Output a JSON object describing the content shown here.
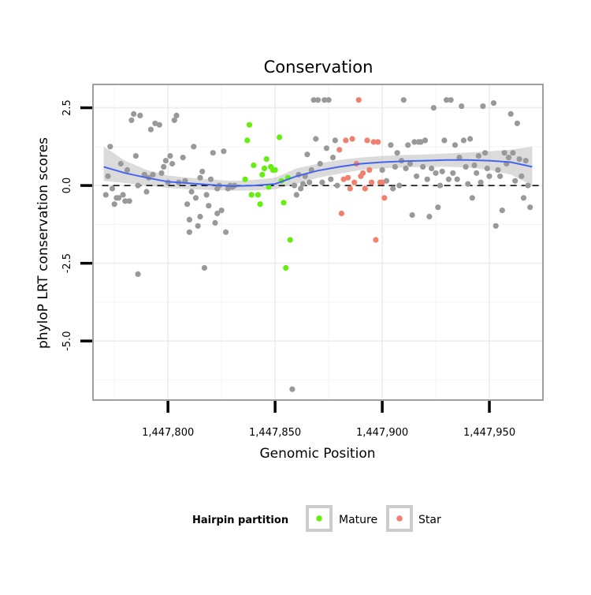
{
  "chart_data": {
    "type": "scatter",
    "title": "Conservation",
    "xlabel": "Genomic Position",
    "ylabel": "phyloP LRT conservation scores",
    "xlim": [
      1447765,
      1447975
    ],
    "ylim": [
      -6.9,
      3.25
    ],
    "x_ticks": [
      1447800,
      1447850,
      1447900,
      1447950
    ],
    "x_tick_labels": [
      "1,447,800",
      "1,447,850",
      "1,447,900",
      "1,447,950"
    ],
    "y_ticks": [
      2.5,
      0.0,
      -2.5,
      -5.0
    ],
    "y_tick_labels": [
      "2.5",
      "0.0",
      "-2.5",
      "-5.0"
    ],
    "reference_line": {
      "y": 0,
      "style": "dashed",
      "color": "#000000"
    },
    "grid": true,
    "colors": {
      "other": "#999999",
      "mature": "#66ee11",
      "star": "#f08070",
      "smooth": "#4466ee",
      "band": "#cccccc"
    },
    "legend": {
      "title": "Hairpin partition",
      "position": "bottom",
      "entries": [
        {
          "name": "Mature",
          "color": "#66ee11"
        },
        {
          "name": "Star",
          "color": "#f08070"
        }
      ]
    },
    "smooth": {
      "x": [
        1447770,
        1447780,
        1447790,
        1447800,
        1447810,
        1447820,
        1447830,
        1447840,
        1447850,
        1447860,
        1447870,
        1447880,
        1447890,
        1447900,
        1447910,
        1447920,
        1447930,
        1447940,
        1447950,
        1447960,
        1447970
      ],
      "y": [
        0.6,
        0.4,
        0.25,
        0.12,
        0.07,
        0.02,
        -0.02,
        0.0,
        0.05,
        0.3,
        0.48,
        0.6,
        0.7,
        0.75,
        0.78,
        0.8,
        0.82,
        0.82,
        0.8,
        0.75,
        0.6
      ],
      "lower": [
        0.15,
        0.08,
        0.0,
        -0.08,
        -0.12,
        -0.14,
        -0.17,
        -0.16,
        -0.12,
        0.05,
        0.25,
        0.38,
        0.5,
        0.55,
        0.58,
        0.6,
        0.6,
        0.58,
        0.5,
        0.35,
        0.0
      ],
      "upper": [
        1.25,
        0.8,
        0.5,
        0.32,
        0.25,
        0.2,
        0.15,
        0.18,
        0.25,
        0.55,
        0.7,
        0.82,
        0.9,
        0.95,
        0.98,
        1.0,
        1.03,
        1.06,
        1.1,
        1.15,
        1.25
      ]
    },
    "series": [
      {
        "name": "Other",
        "color": "#999999",
        "points": [
          [
            1447771,
            -0.3
          ],
          [
            1447772,
            0.3
          ],
          [
            1447773,
            1.25
          ],
          [
            1447774,
            -0.1
          ],
          [
            1447775,
            -0.6
          ],
          [
            1447776,
            -0.4
          ],
          [
            1447777,
            -0.4
          ],
          [
            1447778,
            0.7
          ],
          [
            1447779,
            -0.3
          ],
          [
            1447780,
            -0.5
          ],
          [
            1447781,
            0.5
          ],
          [
            1447782,
            -0.5
          ],
          [
            1447783,
            2.1
          ],
          [
            1447784,
            2.3
          ],
          [
            1447785,
            0.95
          ],
          [
            1447786,
            0.0
          ],
          [
            1447786,
            -2.85
          ],
          [
            1447787,
            2.25
          ],
          [
            1447789,
            0.35
          ],
          [
            1447790,
            -0.2
          ],
          [
            1447791,
            0.25
          ],
          [
            1447792,
            1.8
          ],
          [
            1447793,
            0.35
          ],
          [
            1447794,
            2.0
          ],
          [
            1447796,
            1.95
          ],
          [
            1447797,
            0.4
          ],
          [
            1447798,
            0.6
          ],
          [
            1447799,
            0.8
          ],
          [
            1447800,
            0.1
          ],
          [
            1447801,
            0.95
          ],
          [
            1447802,
            0.7
          ],
          [
            1447803,
            2.1
          ],
          [
            1447804,
            2.25
          ],
          [
            1447805,
            0.1
          ],
          [
            1447807,
            0.9
          ],
          [
            1447808,
            0.15
          ],
          [
            1447809,
            -0.6
          ],
          [
            1447810,
            -1.1
          ],
          [
            1447810,
            -1.5
          ],
          [
            1447811,
            -0.2
          ],
          [
            1447812,
            1.25
          ],
          [
            1447813,
            -0.4
          ],
          [
            1447814,
            -1.3
          ],
          [
            1447815,
            0.25
          ],
          [
            1447815,
            -1.0
          ],
          [
            1447816,
            0.45
          ],
          [
            1447817,
            -2.65
          ],
          [
            1447818,
            -0.3
          ],
          [
            1447819,
            -0.65
          ],
          [
            1447820,
            0.2
          ],
          [
            1447821,
            1.05
          ],
          [
            1447822,
            -1.2
          ],
          [
            1447823,
            -0.1
          ],
          [
            1447823,
            -0.9
          ],
          [
            1447824,
            0.0
          ],
          [
            1447825,
            -0.8
          ],
          [
            1447826,
            1.1
          ],
          [
            1447827,
            -1.5
          ],
          [
            1447828,
            -0.1
          ],
          [
            1447829,
            0.0
          ],
          [
            1447830,
            -0.05
          ],
          [
            1447831,
            0.0
          ],
          [
            1447858,
            -6.55
          ],
          [
            1447859,
            0.0
          ],
          [
            1447860,
            -0.3
          ],
          [
            1447861,
            0.35
          ],
          [
            1447862,
            -0.1
          ],
          [
            1447863,
            0.05
          ],
          [
            1447864,
            0.3
          ],
          [
            1447865,
            1.0
          ],
          [
            1447866,
            0.1
          ],
          [
            1447867,
            0.5
          ],
          [
            1447868,
            2.75
          ],
          [
            1447869,
            1.5
          ],
          [
            1447870,
            2.75
          ],
          [
            1447871,
            0.7
          ],
          [
            1447872,
            0.1
          ],
          [
            1447873,
            2.75
          ],
          [
            1447874,
            1.2
          ],
          [
            1447875,
            2.75
          ],
          [
            1447876,
            0.2
          ],
          [
            1447877,
            0.9
          ],
          [
            1447878,
            1.45
          ],
          [
            1447879,
            0.0
          ],
          [
            1447900,
            0.5
          ],
          [
            1447902,
            0.15
          ],
          [
            1447904,
            1.3
          ],
          [
            1447905,
            -0.1
          ],
          [
            1447906,
            0.6
          ],
          [
            1447907,
            1.05
          ],
          [
            1447908,
            0.0
          ],
          [
            1447909,
            0.8
          ],
          [
            1447910,
            2.75
          ],
          [
            1447911,
            0.55
          ],
          [
            1447912,
            1.3
          ],
          [
            1447913,
            0.7
          ],
          [
            1447914,
            -0.95
          ],
          [
            1447915,
            1.4
          ],
          [
            1447916,
            0.3
          ],
          [
            1447917,
            1.4
          ],
          [
            1447918,
            1.4
          ],
          [
            1447919,
            0.6
          ],
          [
            1447920,
            1.45
          ],
          [
            1447921,
            0.2
          ],
          [
            1447922,
            -1.0
          ],
          [
            1447923,
            0.55
          ],
          [
            1447924,
            2.5
          ],
          [
            1447925,
            0.4
          ],
          [
            1447926,
            -0.7
          ],
          [
            1447927,
            0.0
          ],
          [
            1447928,
            0.45
          ],
          [
            1447929,
            1.45
          ],
          [
            1447930,
            2.75
          ],
          [
            1447931,
            0.2
          ],
          [
            1447932,
            2.75
          ],
          [
            1447933,
            0.4
          ],
          [
            1447934,
            1.3
          ],
          [
            1447935,
            0.2
          ],
          [
            1447936,
            0.9
          ],
          [
            1447937,
            2.55
          ],
          [
            1447938,
            1.45
          ],
          [
            1447939,
            0.6
          ],
          [
            1447940,
            0.05
          ],
          [
            1447941,
            1.5
          ],
          [
            1447942,
            -0.4
          ],
          [
            1447943,
            0.65
          ],
          [
            1447944,
            0.4
          ],
          [
            1447945,
            0.95
          ],
          [
            1447946,
            0.1
          ],
          [
            1447947,
            2.55
          ],
          [
            1447948,
            1.05
          ],
          [
            1447949,
            0.55
          ],
          [
            1447950,
            0.3
          ],
          [
            1447952,
            2.65
          ],
          [
            1447953,
            -1.3
          ],
          [
            1447954,
            0.5
          ],
          [
            1447955,
            0.3
          ],
          [
            1447956,
            -0.8
          ],
          [
            1447957,
            1.05
          ],
          [
            1447958,
            0.7
          ],
          [
            1447959,
            0.9
          ],
          [
            1447960,
            2.3
          ],
          [
            1447961,
            1.05
          ],
          [
            1447962,
            0.15
          ],
          [
            1447963,
            2.0
          ],
          [
            1447964,
            0.85
          ],
          [
            1447965,
            0.3
          ],
          [
            1447966,
            -0.4
          ],
          [
            1447967,
            0.8
          ],
          [
            1447968,
            0.0
          ],
          [
            1447969,
            -0.7
          ]
        ]
      },
      {
        "name": "Mature",
        "color": "#66ee11",
        "points": [
          [
            1447836,
            0.2
          ],
          [
            1447837,
            1.45
          ],
          [
            1447838,
            1.95
          ],
          [
            1447839,
            -0.3
          ],
          [
            1447840,
            0.65
          ],
          [
            1447842,
            -0.3
          ],
          [
            1447843,
            -0.6
          ],
          [
            1447844,
            0.35
          ],
          [
            1447845,
            0.55
          ],
          [
            1447846,
            0.85
          ],
          [
            1447847,
            -0.05
          ],
          [
            1447848,
            0.6
          ],
          [
            1447849,
            0.5
          ],
          [
            1447850,
            0.5
          ],
          [
            1447852,
            1.55
          ],
          [
            1447853,
            0.15
          ],
          [
            1447854,
            -0.55
          ],
          [
            1447855,
            -2.65
          ],
          [
            1447857,
            -1.75
          ],
          [
            1447856,
            0.25
          ]
        ]
      },
      {
        "name": "Star",
        "color": "#f08070",
        "points": [
          [
            1447880,
            1.15
          ],
          [
            1447881,
            -0.9
          ],
          [
            1447882,
            0.2
          ],
          [
            1447883,
            1.45
          ],
          [
            1447884,
            0.25
          ],
          [
            1447885,
            -0.1
          ],
          [
            1447886,
            1.5
          ],
          [
            1447887,
            0.1
          ],
          [
            1447888,
            0.7
          ],
          [
            1447889,
            2.75
          ],
          [
            1447890,
            0.3
          ],
          [
            1447891,
            0.4
          ],
          [
            1447892,
            -0.1
          ],
          [
            1447893,
            1.45
          ],
          [
            1447894,
            0.5
          ],
          [
            1447895,
            0.1
          ],
          [
            1447896,
            1.4
          ],
          [
            1447897,
            -1.75
          ],
          [
            1447898,
            1.4
          ],
          [
            1447899,
            0.1
          ],
          [
            1447900,
            0.1
          ],
          [
            1447901,
            -0.4
          ]
        ]
      }
    ]
  }
}
